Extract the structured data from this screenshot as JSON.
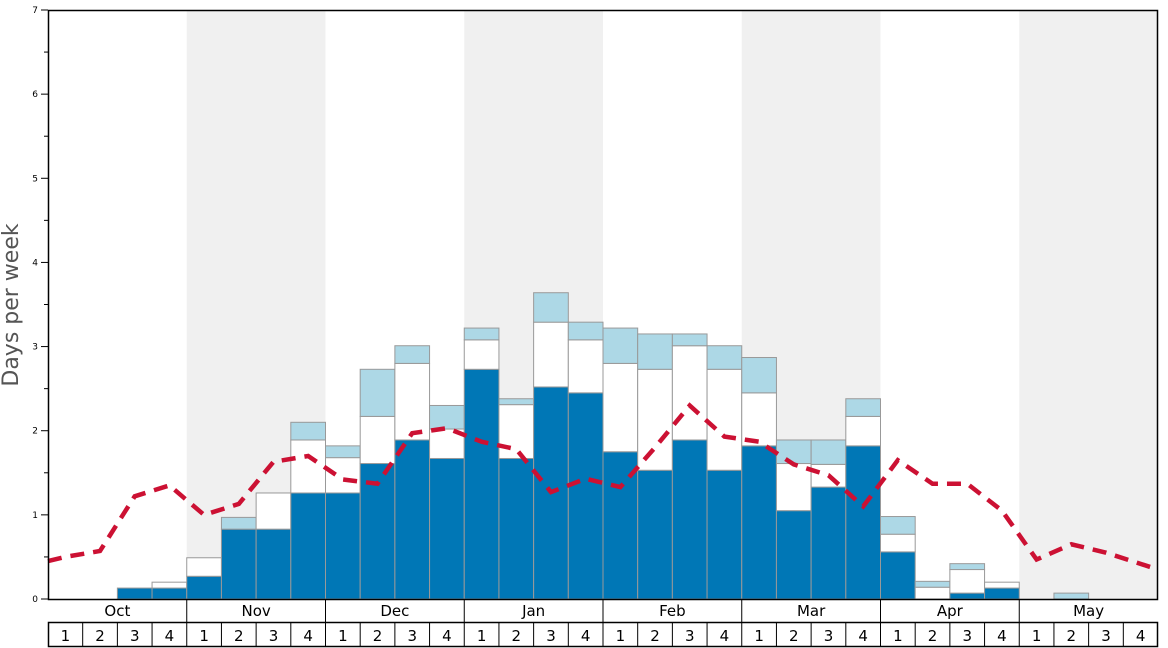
{
  "chart_data": {
    "type": "bar",
    "ylabel": "Days per week",
    "ylim": [
      0,
      7
    ],
    "yticks": [
      "0",
      "1",
      "2",
      "3",
      "4",
      "5",
      "6",
      "7"
    ],
    "months": [
      "Oct",
      "Nov",
      "Dec",
      "Jan",
      "Feb",
      "Mar",
      "Apr",
      "May"
    ],
    "week_labels": [
      "1",
      "2",
      "3",
      "4"
    ],
    "stacked": true,
    "colors": {
      "dark": "#0077b6",
      "white": "#ffffff",
      "light": "#add8e6",
      "line": "#cc1133",
      "shade": "#f0f0f0"
    },
    "series": [
      {
        "values": [
          0,
          0,
          0.13,
          0.13,
          0.27,
          0.83,
          0.83,
          1.26,
          1.26,
          1.61,
          1.89,
          1.67,
          2.73,
          1.67,
          2.52,
          2.45,
          1.75,
          1.53,
          1.89,
          1.53,
          1.82,
          1.05,
          1.33,
          1.82,
          0.56,
          0,
          0.07,
          0.13,
          0,
          0,
          0,
          0
        ]
      },
      {
        "values": [
          0,
          0,
          0,
          0.07,
          0.22,
          0,
          0.43,
          0.63,
          0.42,
          0.56,
          0.91,
          0.35,
          0.35,
          0.64,
          0.77,
          0.63,
          1.05,
          1.2,
          1.12,
          1.2,
          0.63,
          0.56,
          0.27,
          0.35,
          0.21,
          0.14,
          0.28,
          0.07,
          0,
          0,
          0,
          0
        ]
      },
      {
        "values": [
          0,
          0,
          0,
          0,
          0,
          0.14,
          0,
          0.21,
          0.14,
          0.56,
          0.21,
          0.28,
          0.14,
          0.07,
          0.35,
          0.21,
          0.42,
          0.42,
          0.14,
          0.28,
          0.42,
          0.28,
          0.29,
          0.21,
          0.21,
          0.07,
          0.07,
          0,
          0,
          0.07,
          0,
          0
        ]
      },
      {
        "values": [
          0.45,
          0.5,
          0.57,
          1.22,
          1.35,
          1.0,
          1.13,
          1.63,
          1.7,
          1.42,
          1.37,
          1.97,
          2.03,
          1.87,
          1.78,
          1.27,
          1.43,
          1.33,
          1.8,
          2.3,
          1.93,
          1.87,
          1.6,
          1.47,
          1.1,
          1.65,
          1.37,
          1.37,
          1.05,
          0.47,
          0.65,
          0.55,
          0.35
        ]
      }
    ]
  }
}
